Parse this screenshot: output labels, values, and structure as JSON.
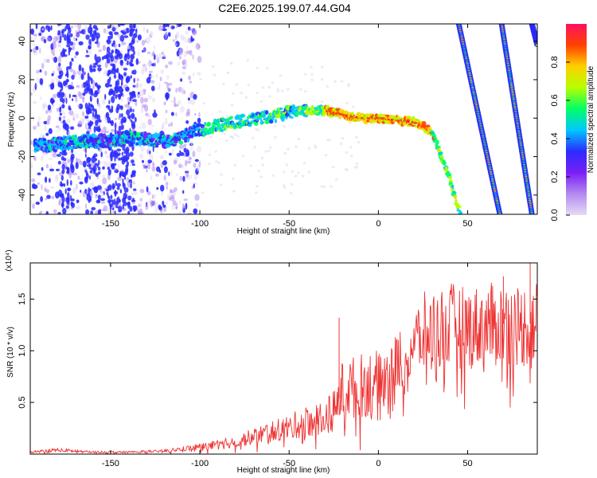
{
  "figure": {
    "title": "C2E6.2025.199.07.44.G04"
  },
  "chart_data": [
    {
      "type": "heatmap",
      "xlabel": "Height of straight line (km)",
      "ylabel": "Frequency (Hz)",
      "xlim": [
        -195,
        89
      ],
      "ylim": [
        -50,
        49
      ],
      "xticks": [
        -150,
        -100,
        -50,
        0,
        50
      ],
      "yticks": [
        -40,
        -20,
        0,
        20,
        40
      ],
      "colorbar": {
        "label": "Normalized spectral amplitude",
        "range": [
          0.0,
          1.0
        ],
        "ticks": [
          "0.0",
          "0.2",
          "0.4",
          "0.6",
          "0.8"
        ],
        "colors": [
          "#e4dbf4",
          "#b38af0",
          "#7a1ff5",
          "#2b2bff",
          "#00c8ff",
          "#00ff66",
          "#b4ff00",
          "#ffd000",
          "#ff4000",
          "#ff1060"
        ]
      },
      "main_trace": [
        [
          -192,
          -14
        ],
        [
          -185,
          -14
        ],
        [
          -175,
          -13
        ],
        [
          -165,
          -12
        ],
        [
          -150,
          -12
        ],
        [
          -140,
          -10
        ],
        [
          -130,
          -11
        ],
        [
          -120,
          -12
        ],
        [
          -110,
          -10
        ],
        [
          -100,
          -6
        ],
        [
          -90,
          -4
        ],
        [
          -80,
          -2
        ],
        [
          -70,
          -1
        ],
        [
          -60,
          1
        ],
        [
          -50,
          3
        ],
        [
          -40,
          4
        ],
        [
          -30,
          4
        ],
        [
          -20,
          2
        ],
        [
          -10,
          0
        ],
        [
          0,
          0
        ],
        [
          10,
          -1
        ],
        [
          20,
          -2
        ],
        [
          25,
          -4
        ],
        [
          30,
          -8
        ],
        [
          33,
          -14
        ],
        [
          36,
          -22
        ],
        [
          40,
          -32
        ],
        [
          44,
          -45
        ],
        [
          46,
          -50
        ]
      ],
      "oblique_traces": [
        {
          "top": [
            45,
            49
          ],
          "bottom": [
            68,
            -50
          ]
        },
        {
          "top": [
            69,
            49
          ],
          "bottom": [
            86,
            -50
          ]
        },
        {
          "top": [
            86,
            49
          ],
          "bottom": [
            89,
            38
          ]
        }
      ]
    },
    {
      "type": "line",
      "xlabel": "Height of straight line (km)",
      "ylabel": "SNR (10 * v/v)",
      "y_multiplier": "(x10⁴)",
      "xlim": [
        -195,
        89
      ],
      "ylim": [
        0,
        1.85
      ],
      "xticks": [
        -150,
        -100,
        -50,
        0,
        50
      ],
      "yticks": [
        0.5,
        1.0,
        1.5
      ],
      "ytick_labels": [
        "0.5",
        "1.0",
        "1.5"
      ],
      "color": "#ee3333",
      "series": [
        {
          "x": [
            -195,
            -180,
            -160,
            -140,
            -120,
            -100,
            -90,
            -80,
            -70,
            -60,
            -50,
            -40,
            -30,
            -25,
            -20,
            -10,
            0,
            10,
            20,
            25,
            30,
            40,
            50,
            60,
            70,
            80,
            89
          ],
          "y": [
            0.02,
            0.04,
            0.02,
            0.02,
            0.03,
            0.07,
            0.09,
            0.12,
            0.17,
            0.22,
            0.26,
            0.32,
            0.36,
            0.42,
            0.62,
            0.66,
            0.72,
            0.88,
            1.07,
            1.18,
            1.2,
            1.25,
            1.22,
            1.24,
            1.26,
            1.24,
            1.28
          ]
        }
      ],
      "spikes": [
        {
          "x": -22,
          "y": 1.32
        },
        {
          "x": 85,
          "y": 1.85
        },
        {
          "x": 70,
          "y": 1.72
        }
      ]
    }
  ]
}
